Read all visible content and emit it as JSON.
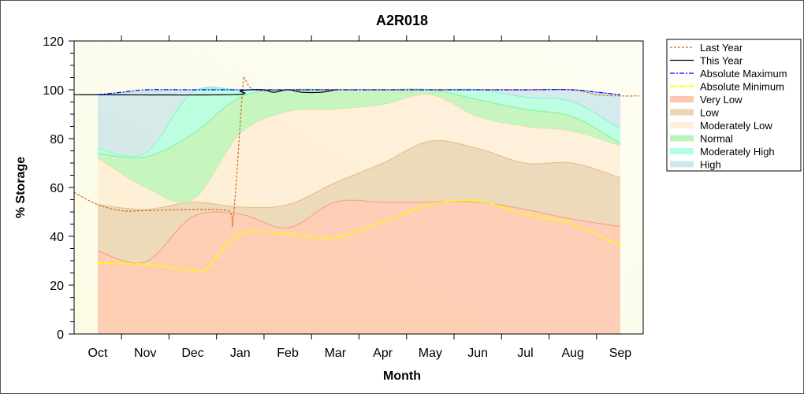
{
  "chart_data": {
    "type": "area",
    "title": "A2R018",
    "xlabel": "Month",
    "ylabel": "% Storage",
    "ylim": [
      0,
      120
    ],
    "yticks": [
      0,
      20,
      40,
      60,
      80,
      100,
      120
    ],
    "categories": [
      "Oct",
      "Nov",
      "Dec",
      "Jan",
      "Feb",
      "Mar",
      "Apr",
      "May",
      "Jun",
      "Jul",
      "Aug",
      "Sep"
    ],
    "grid": false,
    "legend_position": "right",
    "bands": [
      {
        "name": "Very Low",
        "color": "#ff9f80",
        "upper": [
          34,
          29.5,
          48,
          49,
          43.5,
          54,
          54,
          54,
          54,
          51,
          47,
          44
        ]
      },
      {
        "name": "Low",
        "color": "#deb887",
        "upper": [
          53,
          51,
          54,
          52,
          53,
          62,
          70,
          79,
          76,
          70,
          70,
          64
        ]
      },
      {
        "name": "Moderately Low",
        "color": "#ffe4c4",
        "upper": [
          72,
          60,
          55,
          82,
          91,
          92,
          94,
          98,
          89,
          85,
          83,
          77
        ]
      },
      {
        "name": "Normal",
        "color": "#90ee90",
        "upper": [
          74,
          72.5,
          82,
          97,
          100,
          100,
          100,
          100,
          96,
          92,
          89,
          78
        ]
      },
      {
        "name": "Moderately High",
        "color": "#7fffd4",
        "upper": [
          76,
          74,
          99,
          100,
          100,
          100,
          100,
          100,
          100,
          97,
          95,
          84
        ]
      },
      {
        "name": "High",
        "color": "#add8e6",
        "upper": [
          98,
          99.5,
          100,
          100,
          100,
          100,
          100,
          100,
          100,
          100,
          100,
          98
        ]
      }
    ],
    "lines": [
      {
        "name": "Last Year",
        "color": "#d2691e",
        "style": "dash",
        "x": [
          -0.5,
          0,
          0.5,
          1,
          2,
          2.75,
          2.85,
          3.05,
          3.1,
          3.3,
          4,
          5,
          6,
          7,
          8,
          9,
          10,
          10.5,
          11,
          11.4
        ],
        "y": [
          58,
          53,
          50.5,
          50.5,
          51,
          50.5,
          47,
          100,
          104,
          100,
          100,
          100,
          100,
          100,
          100,
          100,
          100,
          98,
          97.5,
          97.5
        ]
      },
      {
        "name": "This Year",
        "color": "#000000",
        "style": "solid",
        "x": [
          -0.5,
          2.8,
          3.0,
          3.2,
          3.5,
          3.7,
          4.0,
          4.3,
          4.7,
          5.0
        ],
        "y": [
          98,
          98,
          99.5,
          100,
          100,
          99,
          100,
          99,
          99,
          100
        ]
      },
      {
        "name": "Absolute Maximum",
        "color": "#0000ff",
        "style": "dashdot",
        "x": [
          0,
          0.5,
          1,
          2,
          3,
          4,
          5,
          6,
          7,
          8,
          9,
          10,
          10.5,
          11
        ],
        "y": [
          98,
          99,
          100,
          100,
          100,
          100,
          100,
          100,
          100,
          100,
          100,
          100,
          99,
          98
        ]
      },
      {
        "name": "Absolute Minimum",
        "color": "#ffff00",
        "style": "dashdot",
        "x": [
          0,
          1,
          2,
          2.3,
          3,
          4,
          5,
          6,
          7,
          8,
          9,
          10,
          11
        ],
        "y": [
          29,
          28.5,
          26,
          27,
          41,
          41,
          39.5,
          46,
          53,
          54.5,
          49,
          45,
          36
        ]
      }
    ],
    "legend": [
      "Last Year",
      "This Year",
      "Absolute Maximum",
      "Absolute Minimum",
      "Very Low",
      "Low",
      "Moderately Low",
      "Normal",
      "Moderately High",
      "High"
    ]
  }
}
